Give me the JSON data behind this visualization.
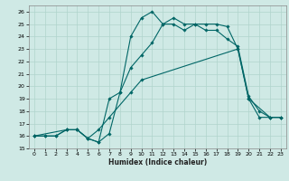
{
  "xlabel": "Humidex (Indice chaleur)",
  "xlim": [
    -0.5,
    23.5
  ],
  "ylim": [
    15,
    26.5
  ],
  "yticks": [
    15,
    16,
    17,
    18,
    19,
    20,
    21,
    22,
    23,
    24,
    25,
    26
  ],
  "xticks": [
    0,
    1,
    2,
    3,
    4,
    5,
    6,
    7,
    8,
    9,
    10,
    11,
    12,
    13,
    14,
    15,
    16,
    17,
    18,
    19,
    20,
    21,
    22,
    23
  ],
  "bg_color": "#cfe9e5",
  "grid_color": "#b0d4cc",
  "line_color": "#006666",
  "line1_x": [
    0,
    1,
    2,
    3,
    4,
    5,
    6,
    7,
    8,
    9,
    10,
    11,
    12,
    13,
    14,
    15,
    16,
    17,
    18,
    19,
    20,
    21,
    22,
    23
  ],
  "line1_y": [
    16.0,
    16.0,
    16.0,
    16.5,
    16.5,
    15.8,
    15.5,
    16.2,
    19.5,
    24.0,
    25.5,
    26.0,
    25.0,
    25.0,
    24.5,
    25.0,
    24.5,
    24.5,
    23.8,
    23.2,
    19.2,
    18.0,
    17.5,
    17.5
  ],
  "line2_x": [
    0,
    1,
    2,
    3,
    4,
    5,
    6,
    7,
    8,
    9,
    10,
    11,
    12,
    13,
    14,
    15,
    16,
    17,
    18,
    19,
    20,
    21,
    22,
    23
  ],
  "line2_y": [
    16.0,
    16.0,
    16.0,
    16.5,
    16.5,
    15.8,
    15.5,
    19.0,
    19.5,
    21.5,
    22.5,
    23.5,
    25.0,
    25.5,
    25.0,
    25.0,
    25.0,
    25.0,
    24.8,
    23.0,
    19.0,
    17.5,
    17.5,
    17.5
  ],
  "line3_x": [
    0,
    3,
    4,
    5,
    6,
    7,
    9,
    10,
    19,
    20,
    22,
    23
  ],
  "line3_y": [
    16.0,
    16.5,
    16.5,
    15.8,
    16.5,
    17.5,
    19.5,
    20.5,
    23.0,
    19.0,
    17.5,
    17.5
  ]
}
